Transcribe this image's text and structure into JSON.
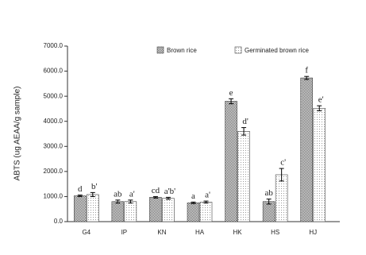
{
  "chart_data": {
    "type": "bar",
    "y_label": "ABTS (ug AEAA/g sample)",
    "categories": [
      "G4",
      "IP",
      "KN",
      "HA",
      "HK",
      "HS",
      "HJ"
    ],
    "series": [
      {
        "name": "Brown rice",
        "color": "#555555",
        "values": [
          1030,
          800,
          970,
          750,
          4800,
          800,
          5730
        ],
        "errors": [
          30,
          60,
          30,
          30,
          100,
          100,
          60
        ],
        "labels": [
          "d",
          "ab",
          "cd",
          "a",
          "e",
          "ab",
          "f"
        ]
      },
      {
        "name": "Germinated brown rice",
        "color": "#9a9a9a",
        "values": [
          1080,
          800,
          930,
          780,
          3600,
          1870,
          4520
        ],
        "errors": [
          80,
          60,
          40,
          40,
          150,
          250,
          100
        ],
        "labels": [
          "b'",
          "a'",
          "a'b'",
          "a'",
          "d'",
          "c'",
          "e'"
        ]
      }
    ],
    "ylim": [
      0,
      7000
    ],
    "yticks": [
      {
        "value": 0,
        "label": "0.0"
      },
      {
        "value": 1000,
        "label": "1000.0"
      },
      {
        "value": 2000,
        "label": "2000.0"
      },
      {
        "value": 3000,
        "label": "3000.0"
      },
      {
        "value": 4000,
        "label": "4000.0"
      },
      {
        "value": 5000,
        "label": "5000.0"
      },
      {
        "value": 6000,
        "label": "6000.0"
      },
      {
        "value": 7000,
        "label": "7000.0"
      }
    ],
    "legend": "top"
  }
}
